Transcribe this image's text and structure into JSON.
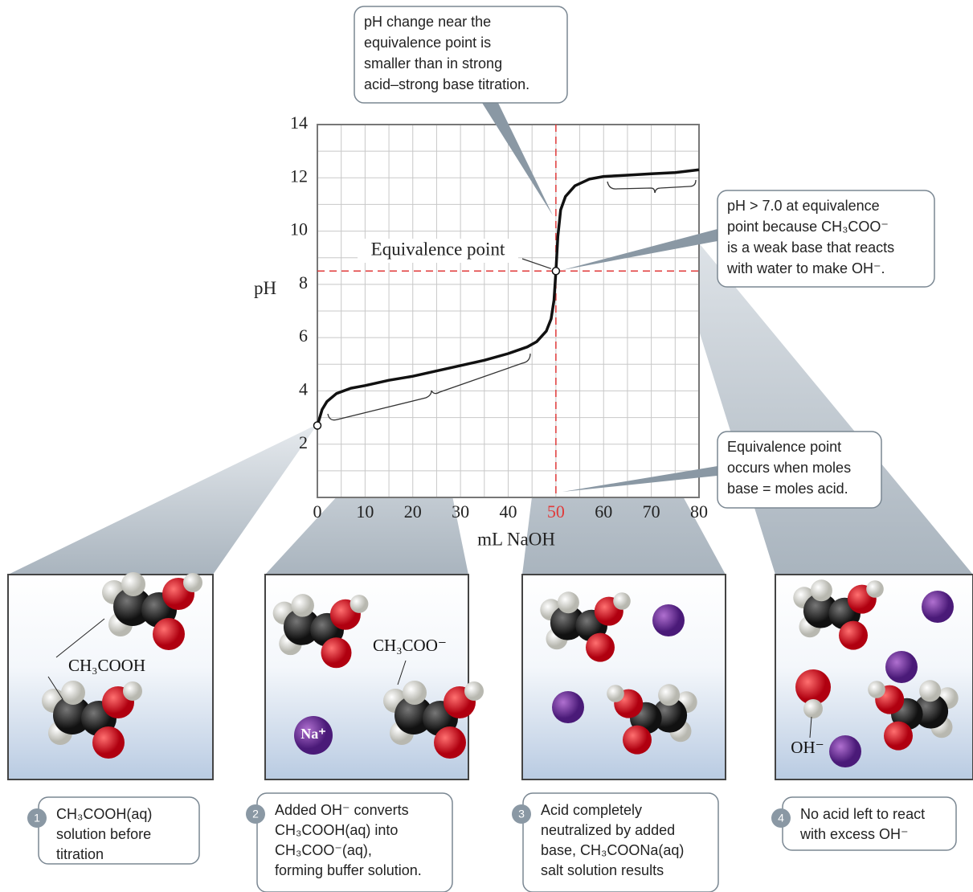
{
  "chart_data": {
    "type": "line",
    "x_label": "mL NaOH",
    "y_label": "pH",
    "xlim": [
      0,
      80
    ],
    "ylim": [
      0,
      14
    ],
    "xticks": [
      0,
      10,
      20,
      30,
      40,
      50,
      60,
      70,
      80
    ],
    "yticks": [
      2,
      4,
      6,
      8,
      10,
      12,
      14
    ],
    "xminor": [
      5,
      15,
      25,
      35,
      45,
      55,
      65,
      75
    ],
    "yminor": [
      1,
      3,
      5,
      7,
      9,
      11,
      13
    ],
    "grid": true,
    "color": "#111111",
    "x": [
      0,
      1,
      2,
      4,
      7,
      10,
      15,
      20,
      25,
      30,
      35,
      40,
      44,
      46,
      48,
      49,
      49.6,
      50,
      50.4,
      51,
      52,
      54,
      57,
      60,
      65,
      70,
      75,
      80
    ],
    "values": [
      2.7,
      3.3,
      3.6,
      3.9,
      4.1,
      4.2,
      4.4,
      4.55,
      4.75,
      4.95,
      5.15,
      5.4,
      5.65,
      5.85,
      6.25,
      6.7,
      7.4,
      8.5,
      9.8,
      10.8,
      11.3,
      11.7,
      11.95,
      12.05,
      12.1,
      12.15,
      12.2,
      12.3
    ],
    "equivalence": {
      "x": 50,
      "y": 8.5,
      "label": "Equivalence point",
      "color": "#e03a3a"
    },
    "annotations": [
      {
        "lines": [
          "pH change near the",
          "equivalence point is",
          "smaller than in strong",
          "acid–strong base titration."
        ]
      },
      {
        "lines": [
          "pH > 7.0 at equivalence",
          "point because CH₃COO⁻",
          "is a weak base that reacts",
          "with water to make OH⁻."
        ]
      },
      {
        "lines": [
          "Equivalence point",
          "occurs when moles",
          "base = moles acid."
        ]
      }
    ],
    "panels": [
      {
        "step": 1,
        "labels": [
          "CH₃COOH"
        ],
        "caption": [
          "CH₃COOH(aq)",
          "solution before",
          "titration"
        ]
      },
      {
        "step": 2,
        "labels": [
          "CH₃COO⁻",
          "Na⁺"
        ],
        "caption": [
          "Added OH⁻ converts",
          "CH₃COOH(aq) into",
          "CH₃COO⁻(aq),",
          "forming buffer solution."
        ]
      },
      {
        "step": 3,
        "labels": [],
        "caption": [
          "Acid completely",
          "neutralized by added",
          "base, CH₃COONa(aq)",
          "salt solution results"
        ]
      },
      {
        "step": 4,
        "labels": [
          "OH⁻"
        ],
        "caption": [
          "No acid left to react",
          "with excess OH⁻"
        ]
      }
    ]
  }
}
